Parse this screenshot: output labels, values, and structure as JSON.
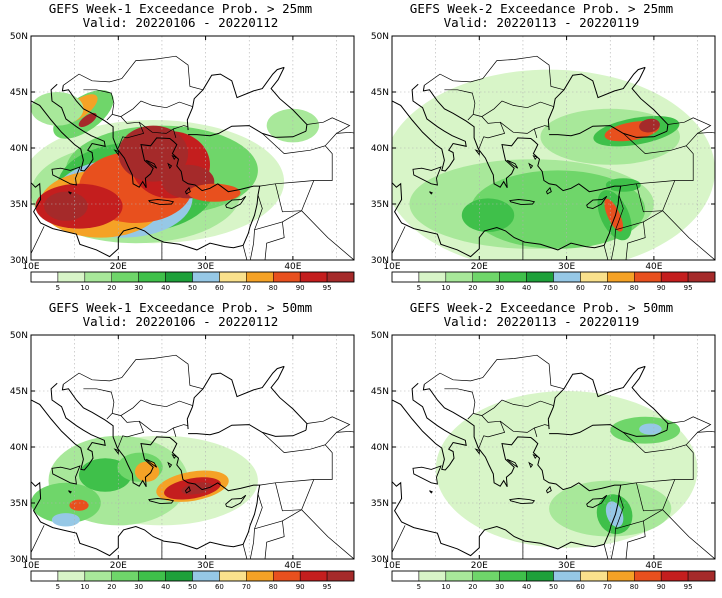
{
  "panels": [
    {
      "title": "GEFS Week-1 Exceedance Prob. > 25mm",
      "valid": "Valid: 20220106 - 20220112",
      "threshold_mm": 25,
      "week": 1,
      "max_probability_regions": [
        {
          "region": "Central Mediterranean / Ionian Sea",
          "prob": 95
        },
        {
          "region": "Aegean Sea / Western Turkey",
          "prob": 95
        },
        {
          "region": "Southern Turkey coast",
          "prob": 90
        },
        {
          "region": "Adriatic Sea",
          "prob": 80
        }
      ]
    },
    {
      "title": "GEFS Week-2 Exceedance Prob. > 25mm",
      "valid": "Valid: 20220113 - 20220119",
      "threshold_mm": 25,
      "week": 2,
      "max_probability_regions": [
        {
          "region": "Northeastern Turkey / Black Sea coast",
          "prob": 95
        },
        {
          "region": "Levant coast",
          "prob": 90
        },
        {
          "region": "Southeastern Turkey",
          "prob": 80
        }
      ]
    },
    {
      "title": "GEFS Week-1 Exceedance Prob. > 50mm",
      "valid": "Valid: 20220106 - 20220112",
      "threshold_mm": 50,
      "week": 1,
      "max_probability_regions": [
        {
          "region": "Southwestern Turkey / Rhodes",
          "prob": 95
        },
        {
          "region": "Southern Greece",
          "prob": 80
        },
        {
          "region": "Sicily / Ionian Sea",
          "prob": 60
        }
      ]
    },
    {
      "title": "GEFS Week-2 Exceedance Prob. > 50mm",
      "valid": "Valid: 20220113 - 20220119",
      "threshold_mm": 50,
      "week": 2,
      "max_probability_regions": [
        {
          "region": "Levant coast",
          "prob": 60
        },
        {
          "region": "Northeastern Turkey",
          "prob": 50
        }
      ]
    }
  ],
  "axes": {
    "lon_range": [
      10,
      47
    ],
    "lat_range": [
      30,
      50
    ],
    "x_ticks": [
      "10E",
      "20E",
      "30E",
      "40E"
    ],
    "y_ticks": [
      "30N",
      "35N",
      "40N",
      "45N",
      "50N"
    ]
  },
  "colorbar": {
    "labels": [
      "5",
      "10",
      "20",
      "30",
      "40",
      "50",
      "60",
      "70",
      "80",
      "90",
      "95"
    ],
    "colors": [
      "#ffffff",
      "#d8f5c8",
      "#a8e89a",
      "#6fd66a",
      "#3fc04a",
      "#1ea03a",
      "#96c8e6",
      "#fae18c",
      "#f5a226",
      "#e8501e",
      "#c41e1e",
      "#a52a2a"
    ]
  }
}
